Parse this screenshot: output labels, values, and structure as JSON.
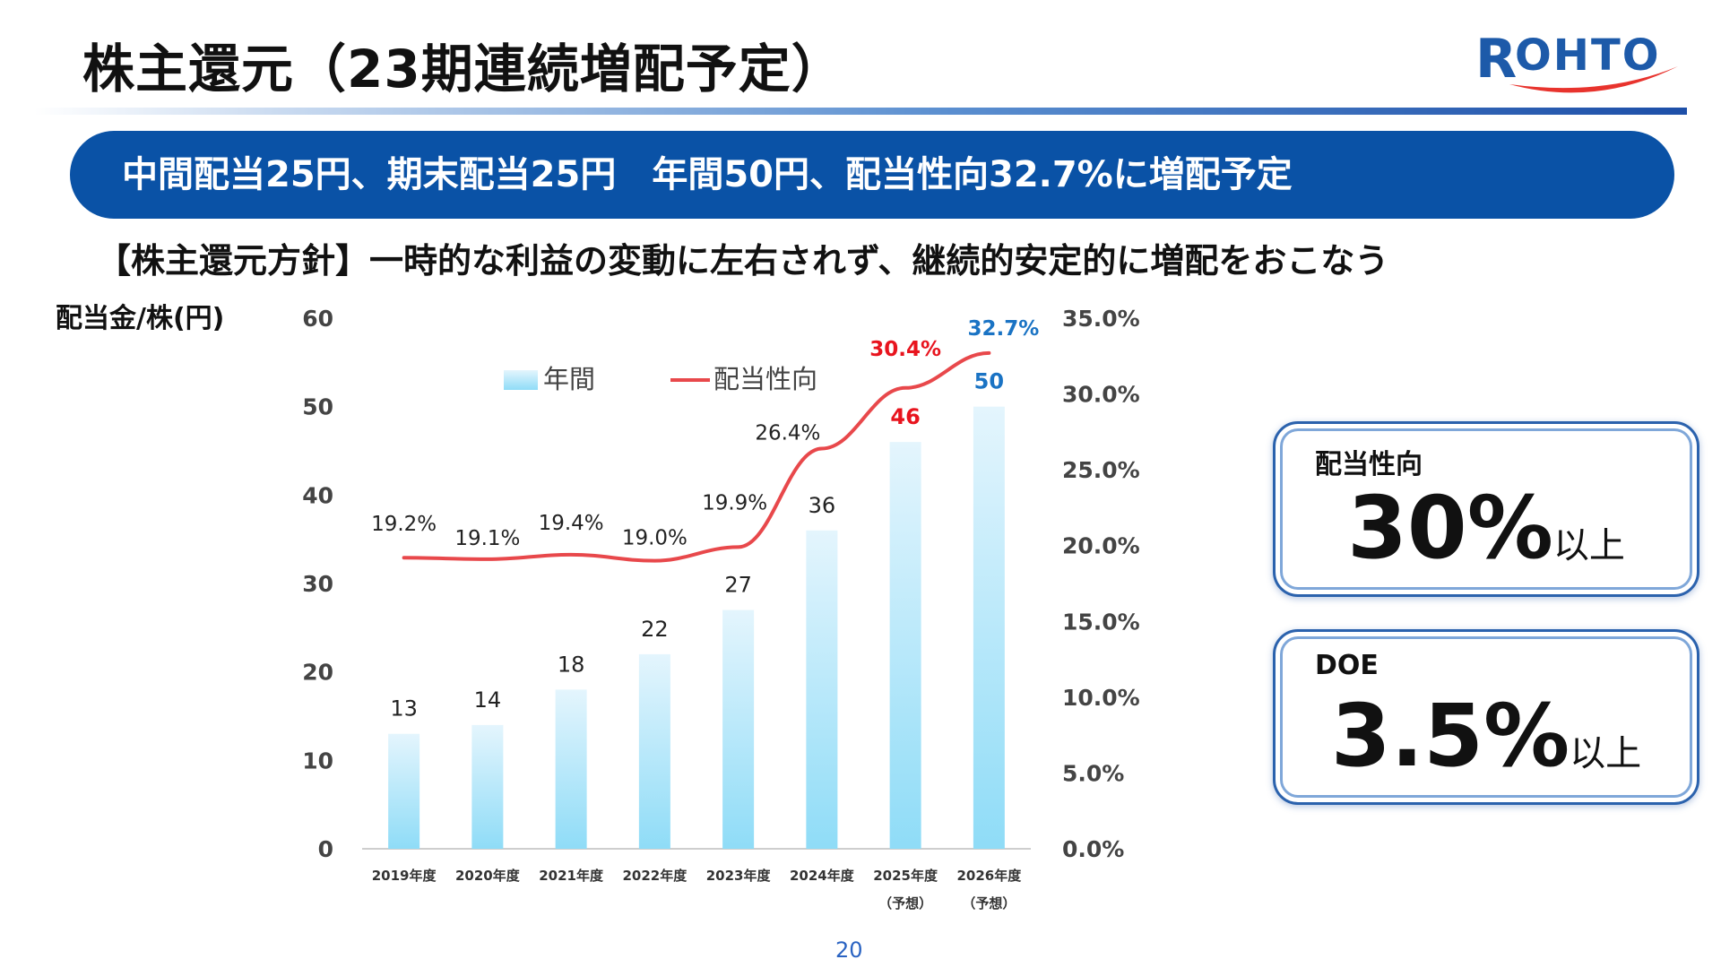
{
  "slide": {
    "title": "株主還元（23期連続増配予定）",
    "logo_text": "ROHTO",
    "banner": "中間配当25円、期末配当25円　年間50円、配当性向32.7%に増配予定",
    "policy": "【株主還元方針】一時的な利益の変動に左右されず、継続的安定的に増配をおこなう",
    "page_number": "20"
  },
  "cards": [
    {
      "label": "配当性向",
      "value": "30%",
      "suffix": "以上"
    },
    {
      "label": "DOE",
      "value": "3.5%",
      "suffix": "以上"
    }
  ],
  "colors": {
    "brand_blue": "#0a52a6",
    "logo_blue": "#1d5aa9",
    "logo_red": "#e8332d",
    "bar_top": "#e4f5fd",
    "bar_bottom": "#8fdcf7",
    "line": "#e8484b",
    "forecast_red": "#e8141e",
    "forecast_blue": "#1a73c4"
  },
  "chart_data": {
    "type": "bar",
    "ylabel": "配当金/株(円)",
    "categories": [
      "2019年度",
      "2020年度",
      "2021年度",
      "2022年度",
      "2023年度",
      "2024年度",
      "2025年度",
      "2026年度"
    ],
    "category_notes": [
      "",
      "",
      "",
      "",
      "",
      "",
      "（予想）",
      "（予想）"
    ],
    "ylim": [
      0,
      60
    ],
    "yticks": [
      "0",
      "10",
      "20",
      "30",
      "40",
      "50",
      "60"
    ],
    "y2lim": [
      0,
      35
    ],
    "y2ticks": [
      "0.0%",
      "5.0%",
      "10.0%",
      "15.0%",
      "20.0%",
      "25.0%",
      "30.0%",
      "35.0%"
    ],
    "legend_placement": "top-left",
    "series": [
      {
        "name": "年間",
        "kind": "bar",
        "axis": "left",
        "values": [
          13,
          14,
          18,
          22,
          27,
          36,
          46,
          50
        ],
        "labels": [
          "13",
          "14",
          "18",
          "22",
          "27",
          "36",
          "46",
          "50"
        ]
      },
      {
        "name": "配当性向",
        "kind": "line",
        "axis": "right",
        "values": [
          19.2,
          19.1,
          19.4,
          19.0,
          19.9,
          26.4,
          30.4,
          32.7
        ],
        "labels": [
          "19.2%",
          "19.1%",
          "19.4%",
          "19.0%",
          "19.9%",
          "26.4%",
          "30.4%",
          "32.7%"
        ]
      }
    ]
  }
}
